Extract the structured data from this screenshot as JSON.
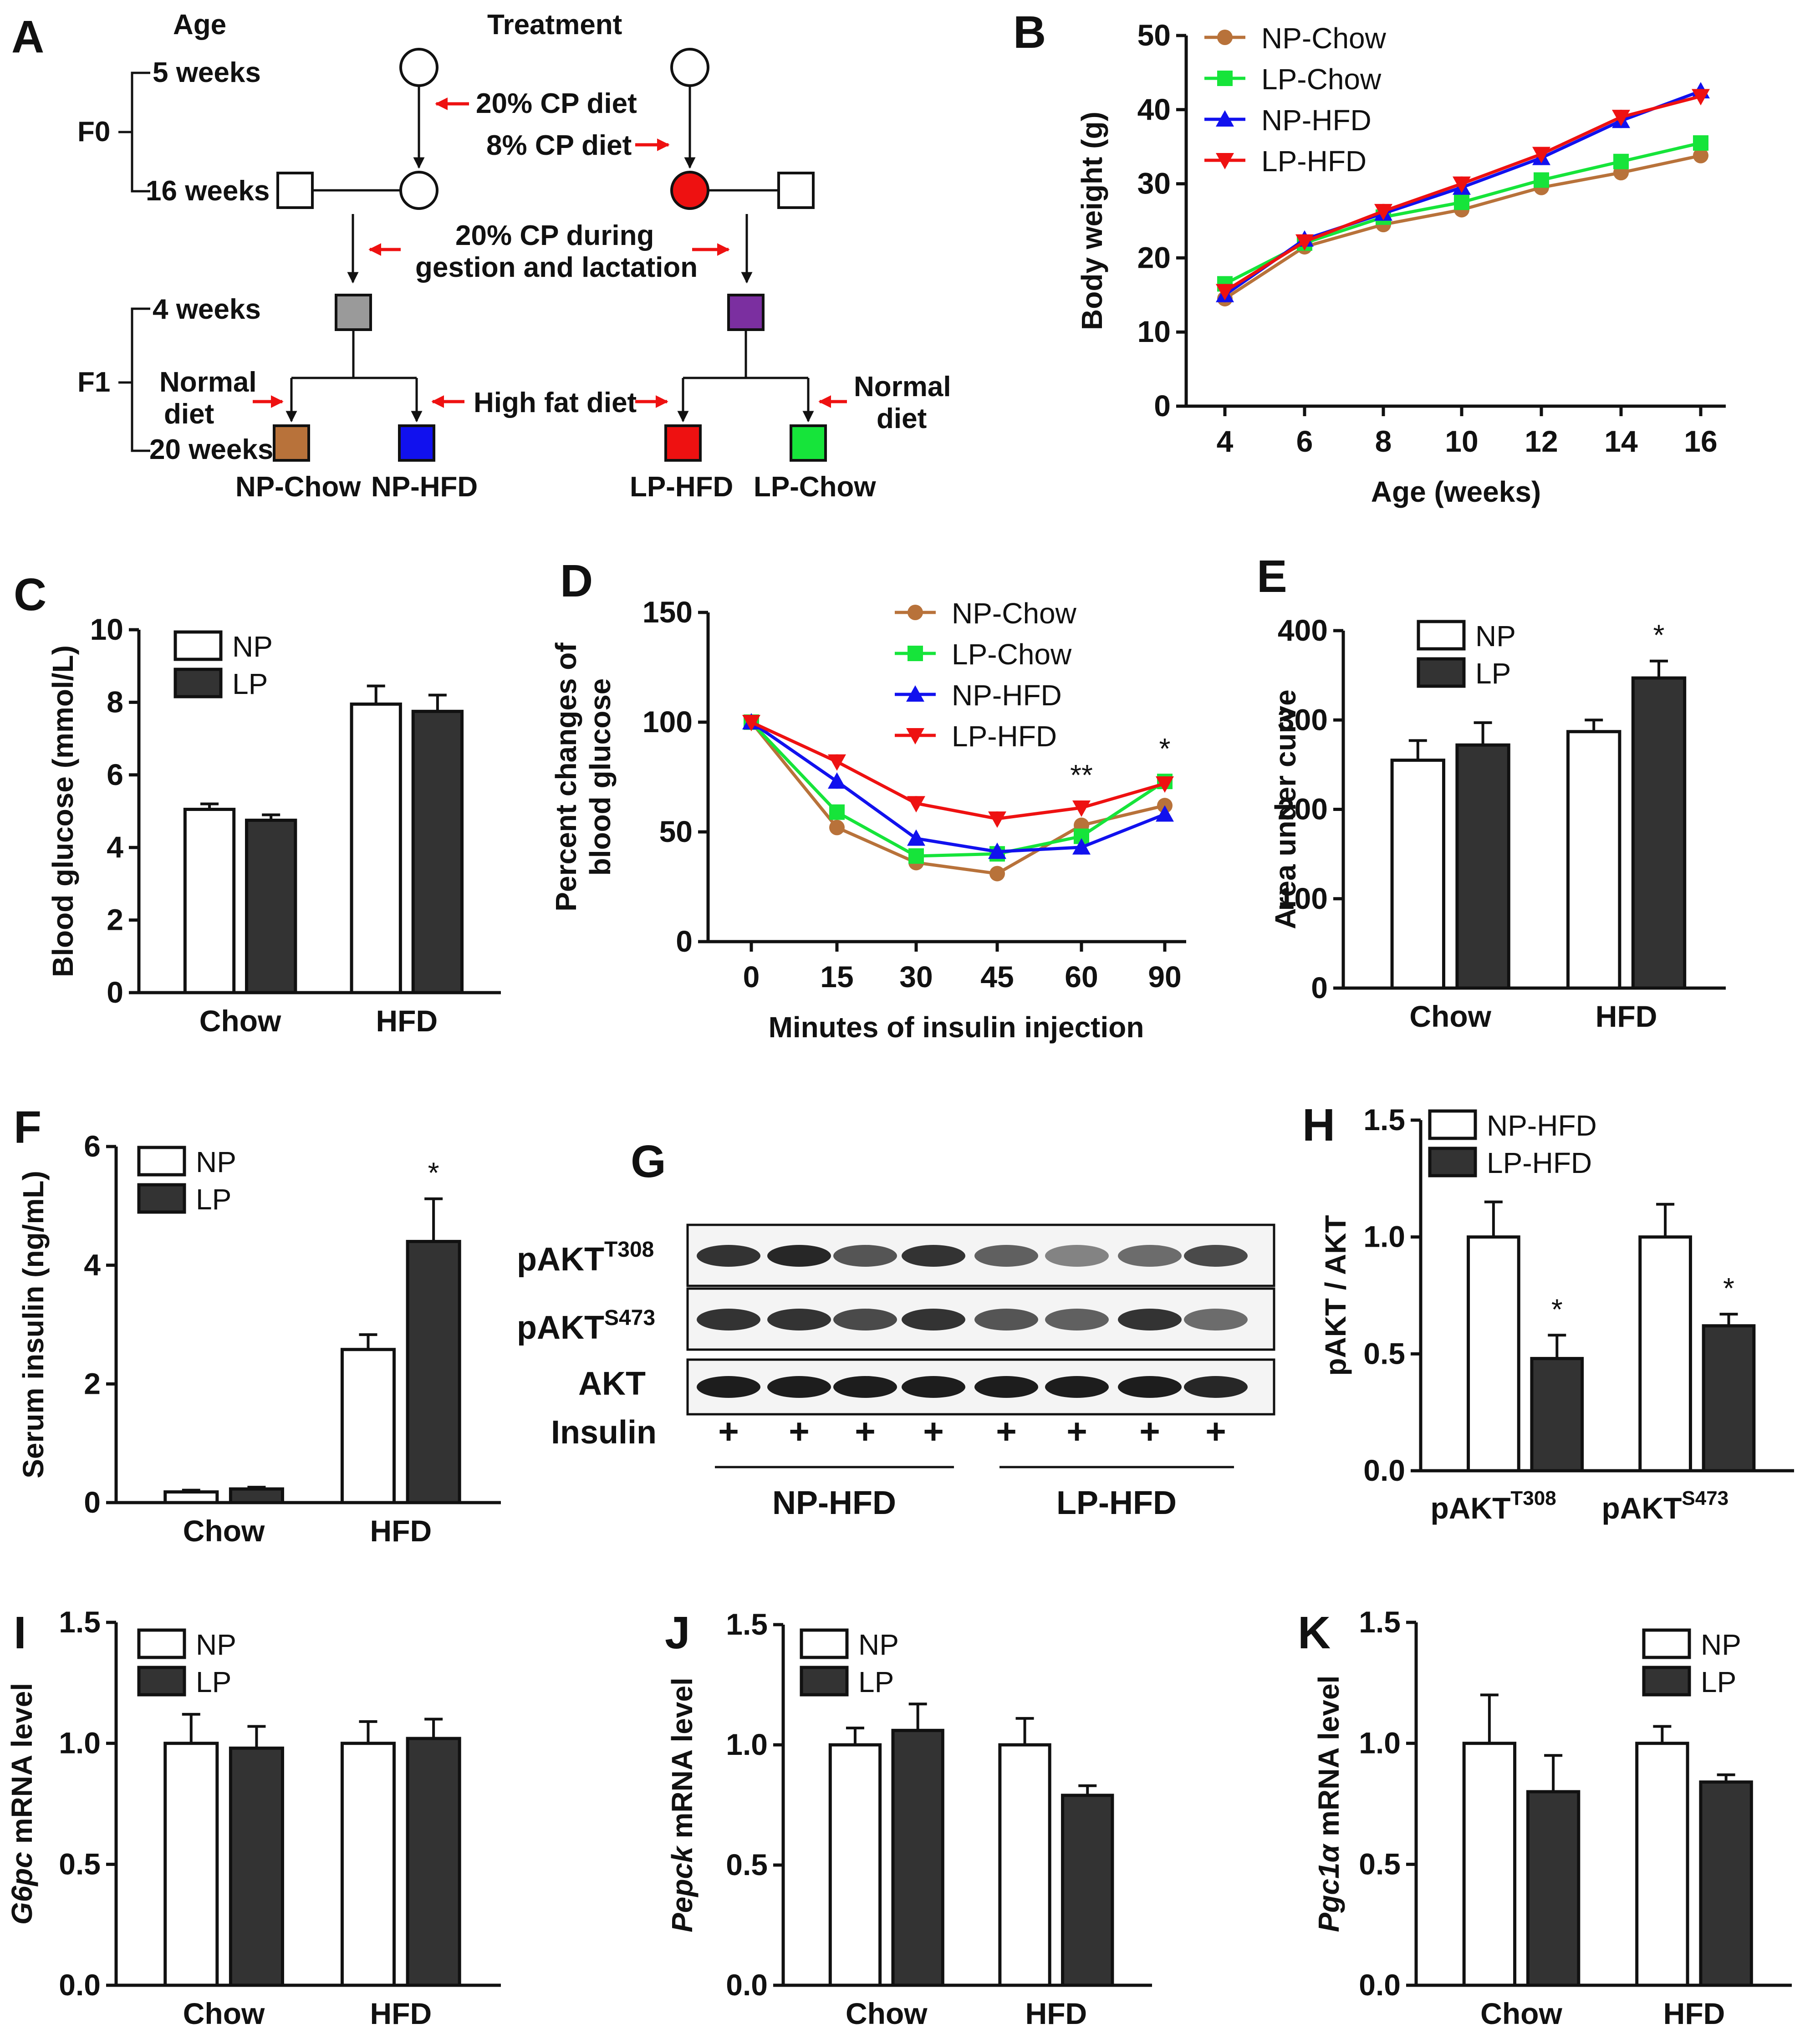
{
  "colors": {
    "np_chow": "#b8723a",
    "lp_chow": "#16e43a",
    "np_hfd": "#1111ee",
    "lp_hfd": "#ee1111",
    "grey_box": "#9a9a9a",
    "purple_box": "#7b2fa0",
    "arrow_red": "#ee1111",
    "bar_dark": "#333333",
    "bar_light": "#ffffff"
  },
  "panel_a": {
    "letter": "A",
    "col_age": "Age",
    "col_treatment": "Treatment",
    "age_5w": "5 weeks",
    "age_16w": "16 weeks",
    "age_4w": "4 weeks",
    "age_20w": "20 weeks",
    "gen_f0": "F0",
    "gen_f1": "F1",
    "diet_20cp": "20%  CP diet",
    "diet_8cp": "8%  CP diet",
    "gestation_1": "20%  CP during",
    "gestation_2": "gestion and lactation",
    "normal_diet_l1": "Normal",
    "normal_diet_l2": "diet",
    "high_fat_diet": "High fat diet",
    "normal_diet_r1": "Normal",
    "normal_diet_r2": "diet",
    "grp_np_chow": "NP-Chow",
    "grp_np_hfd": "NP-HFD",
    "grp_lp_hfd": "LP-HFD",
    "grp_lp_chow": "LP-Chow"
  },
  "panel_g": {
    "letter": "G",
    "row_t308": "pAKT",
    "row_t308_sup": "T308",
    "row_s473": "pAKT",
    "row_s473_sup": "S473",
    "row_akt": "AKT",
    "row_insulin": "Insulin",
    "insulin_marks": [
      "+",
      "+",
      "+",
      "+",
      "+",
      "+",
      "+",
      "+"
    ],
    "group_np": "NP-HFD",
    "group_lp": "LP-HFD"
  },
  "chart_data": [
    {
      "id": "B",
      "type": "line",
      "panel": "B",
      "xlabel": "Age (weeks)",
      "ylabel": "Body weight (g)",
      "x": [
        4,
        6,
        8,
        10,
        12,
        14,
        16
      ],
      "xlim": [
        3,
        17
      ],
      "ylim": [
        0,
        50
      ],
      "xticks": [
        "4",
        "6",
        "8",
        "10",
        "12",
        "14",
        "16"
      ],
      "yticks": [
        "0",
        "10",
        "20",
        "30",
        "40",
        "50"
      ],
      "series": [
        {
          "name": "NP-Chow",
          "color": "#b8723a",
          "marker": "circle",
          "values": [
            14.5,
            21.5,
            24.5,
            26.5,
            29.5,
            31.5,
            33.8
          ]
        },
        {
          "name": "LP-Chow",
          "color": "#16e43a",
          "marker": "square",
          "values": [
            16.5,
            22.0,
            25.5,
            27.5,
            30.5,
            33.0,
            35.5
          ]
        },
        {
          "name": "NP-HFD",
          "color": "#1111ee",
          "marker": "triangle-up",
          "values": [
            15.0,
            22.5,
            26.0,
            29.5,
            33.5,
            38.5,
            42.5
          ]
        },
        {
          "name": "LP-HFD",
          "color": "#ee1111",
          "marker": "triangle-down",
          "values": [
            15.5,
            22.2,
            26.3,
            30.0,
            34.0,
            39.0,
            41.8
          ]
        }
      ],
      "legend": "top-left"
    },
    {
      "id": "C",
      "type": "bar",
      "panel": "C",
      "ylabel": "Blood glucose (mmol/L)",
      "categories": [
        "Chow",
        "HFD"
      ],
      "ylim": [
        0,
        10
      ],
      "yticks": [
        "0",
        "2",
        "4",
        "6",
        "8",
        "10"
      ],
      "series": [
        {
          "name": "NP",
          "values": [
            5.05,
            7.95
          ],
          "errors": [
            0.15,
            0.5
          ]
        },
        {
          "name": "LP",
          "values": [
            4.75,
            7.75
          ],
          "errors": [
            0.15,
            0.45
          ]
        }
      ],
      "annotations": []
    },
    {
      "id": "D",
      "type": "line",
      "panel": "D",
      "xlabel": "Minutes of insulin injection",
      "ylabel_line1": "Percent changes of",
      "ylabel_line2": "blood glucose",
      "x": [
        0,
        15,
        30,
        45,
        60,
        90
      ],
      "ylim": [
        0,
        150
      ],
      "xticks": [
        "0",
        "15",
        "30",
        "45",
        "60",
        "90"
      ],
      "yticks": [
        "0",
        "50",
        "100",
        "150"
      ],
      "series": [
        {
          "name": "NP-Chow",
          "color": "#b8723a",
          "marker": "circle",
          "values": [
            100,
            52,
            36,
            31,
            53,
            62
          ]
        },
        {
          "name": "LP-Chow",
          "color": "#16e43a",
          "marker": "square",
          "values": [
            100,
            59,
            39,
            40,
            48,
            73
          ]
        },
        {
          "name": "NP-HFD",
          "color": "#1111ee",
          "marker": "triangle-up",
          "values": [
            100,
            73,
            47,
            41,
            43,
            58
          ]
        },
        {
          "name": "LP-HFD",
          "color": "#ee1111",
          "marker": "triangle-down",
          "values": [
            100,
            82,
            63,
            56,
            61,
            72
          ]
        }
      ],
      "annotations": [
        {
          "x": 60,
          "text": "**"
        },
        {
          "x": 90,
          "text": "*"
        }
      ],
      "legend": "top-right"
    },
    {
      "id": "E",
      "type": "bar",
      "panel": "E",
      "ylabel": "Area under curve",
      "categories": [
        "Chow",
        "HFD"
      ],
      "ylim": [
        0,
        400
      ],
      "yticks": [
        "0",
        "100",
        "200",
        "300",
        "400"
      ],
      "series": [
        {
          "name": "NP",
          "values": [
            255,
            287
          ],
          "errors": [
            22,
            13
          ]
        },
        {
          "name": "LP",
          "values": [
            272,
            347
          ],
          "errors": [
            25,
            19
          ]
        }
      ],
      "annotations": [
        {
          "category": "HFD",
          "series": "LP",
          "text": "*"
        }
      ]
    },
    {
      "id": "F",
      "type": "bar",
      "panel": "F",
      "ylabel": "Serum insulin (ng/mL)",
      "categories": [
        "Chow",
        "HFD"
      ],
      "ylim": [
        0,
        6
      ],
      "yticks": [
        "0",
        "2",
        "4",
        "6"
      ],
      "series": [
        {
          "name": "NP",
          "values": [
            0.18,
            2.58
          ],
          "errors": [
            0.03,
            0.25
          ]
        },
        {
          "name": "LP",
          "values": [
            0.23,
            4.4
          ],
          "errors": [
            0.03,
            0.72
          ]
        }
      ],
      "annotations": [
        {
          "category": "HFD",
          "series": "LP",
          "text": "*"
        }
      ]
    },
    {
      "id": "H",
      "type": "bar",
      "panel": "H",
      "ylabel": "pAKT / AKT",
      "categories": [
        "pAKT",
        "pAKT"
      ],
      "category_sups": [
        "T308",
        "S473"
      ],
      "ylim": [
        0,
        1.5
      ],
      "yticks": [
        "0.0",
        "0.5",
        "1.0",
        "1.5"
      ],
      "series": [
        {
          "name": "NP-HFD",
          "values": [
            1.0,
            1.0
          ],
          "errors": [
            0.15,
            0.14
          ]
        },
        {
          "name": "LP-HFD",
          "values": [
            0.48,
            0.62
          ],
          "errors": [
            0.1,
            0.05
          ]
        }
      ],
      "annotations": [
        {
          "category": 0,
          "series": "LP-HFD",
          "text": "*"
        },
        {
          "category": 1,
          "series": "LP-HFD",
          "text": "*"
        }
      ]
    },
    {
      "id": "I",
      "type": "bar",
      "panel": "I",
      "ylabel_gene": "G6pc",
      "ylabel_rest": " mRNA level",
      "categories": [
        "Chow",
        "HFD"
      ],
      "ylim": [
        0,
        1.5
      ],
      "yticks": [
        "0.0",
        "0.5",
        "1.0",
        "1.5"
      ],
      "series": [
        {
          "name": "NP",
          "values": [
            1.0,
            1.0
          ],
          "errors": [
            0.12,
            0.09
          ]
        },
        {
          "name": "LP",
          "values": [
            0.98,
            1.02
          ],
          "errors": [
            0.09,
            0.08
          ]
        }
      ],
      "annotations": []
    },
    {
      "id": "J",
      "type": "bar",
      "panel": "J",
      "ylabel_gene": "Pepck",
      "ylabel_rest": " mRNA level",
      "categories": [
        "Chow",
        "HFD"
      ],
      "ylim": [
        0,
        1.5
      ],
      "yticks": [
        "0.0",
        "0.5",
        "1.0",
        "1.5"
      ],
      "series": [
        {
          "name": "NP",
          "values": [
            1.0,
            1.0
          ],
          "errors": [
            0.07,
            0.11
          ]
        },
        {
          "name": "LP",
          "values": [
            1.06,
            0.79
          ],
          "errors": [
            0.11,
            0.04
          ]
        }
      ],
      "annotations": []
    },
    {
      "id": "K",
      "type": "bar",
      "panel": "K",
      "ylabel_gene": "Pgc1α",
      "ylabel_rest": " mRNA level",
      "categories": [
        "Chow",
        "HFD"
      ],
      "ylim": [
        0,
        1.5
      ],
      "yticks": [
        "0.0",
        "0.5",
        "1.0",
        "1.5"
      ],
      "series": [
        {
          "name": "NP",
          "values": [
            1.0,
            1.0
          ],
          "errors": [
            0.2,
            0.07
          ]
        },
        {
          "name": "LP",
          "values": [
            0.8,
            0.84
          ],
          "errors": [
            0.15,
            0.03
          ]
        }
      ],
      "annotations": []
    }
  ]
}
